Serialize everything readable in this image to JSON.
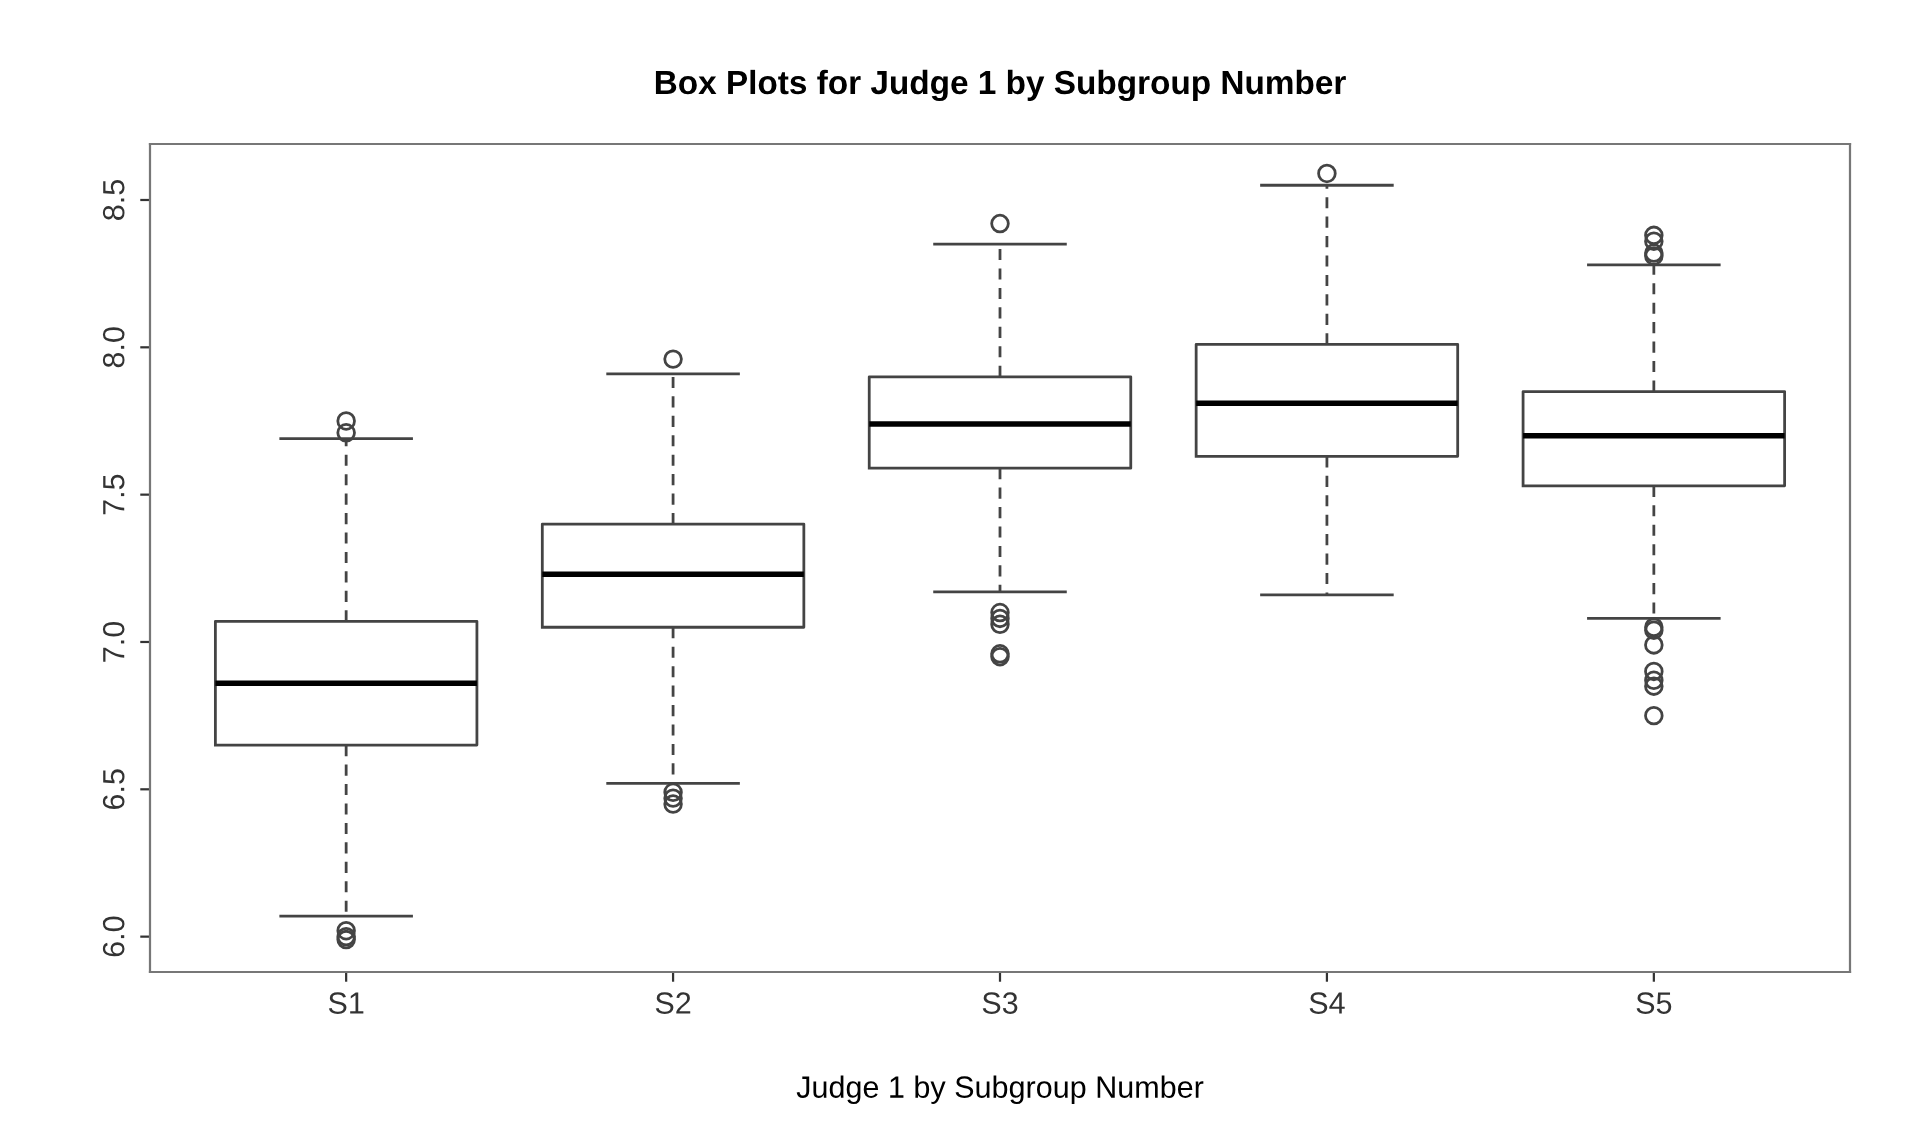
{
  "chart_data": {
    "type": "box",
    "title": "Box Plots for Judge 1 by Subgroup Number",
    "xlabel": "Judge 1 by Subgroup Number",
    "categories": [
      "S1",
      "S2",
      "S3",
      "S4",
      "S5"
    ],
    "boxes": [
      {
        "low": 6.07,
        "q1": 6.65,
        "median": 6.86,
        "q3": 7.07,
        "high": 7.69,
        "outliers": [
          7.75,
          7.71,
          6.02,
          6.0,
          5.99
        ]
      },
      {
        "low": 6.52,
        "q1": 7.05,
        "median": 7.23,
        "q3": 7.4,
        "high": 7.91,
        "outliers": [
          7.96,
          6.49,
          6.47,
          6.45
        ]
      },
      {
        "low": 7.17,
        "q1": 7.59,
        "median": 7.74,
        "q3": 7.9,
        "high": 8.35,
        "outliers": [
          8.42,
          7.1,
          7.08,
          7.06,
          6.96,
          6.95
        ]
      },
      {
        "low": 7.16,
        "q1": 7.63,
        "median": 7.81,
        "q3": 8.01,
        "high": 8.55,
        "outliers": [
          8.59
        ]
      },
      {
        "low": 7.08,
        "q1": 7.53,
        "median": 7.7,
        "q3": 7.85,
        "high": 8.28,
        "outliers": [
          8.38,
          8.36,
          8.32,
          8.31,
          7.05,
          7.04,
          6.99,
          6.9,
          6.87,
          6.85,
          6.75
        ]
      }
    ],
    "ylim": [
      5.88,
      8.69
    ],
    "yticks": [
      {
        "value": 6.0,
        "label": "6.0"
      },
      {
        "value": 6.5,
        "label": "6.5"
      },
      {
        "value": 7.0,
        "label": "7.0"
      },
      {
        "value": 7.5,
        "label": "7.5"
      },
      {
        "value": 8.0,
        "label": "8.0"
      },
      {
        "value": 8.5,
        "label": "8.5"
      }
    ],
    "grid": false,
    "legend": false
  }
}
